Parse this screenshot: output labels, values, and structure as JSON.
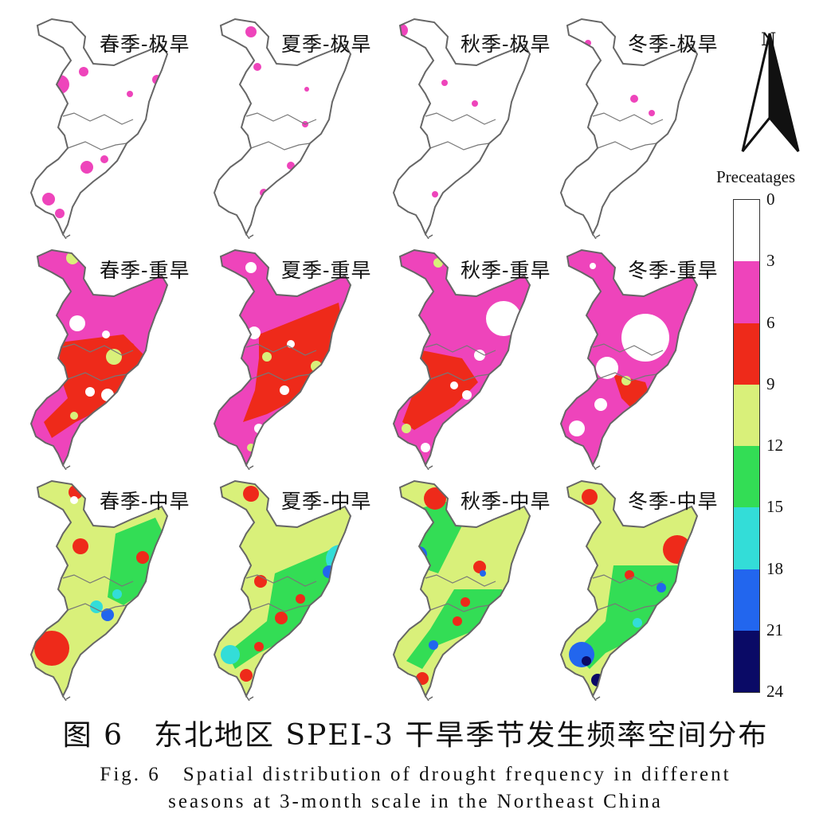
{
  "panels": [
    {
      "title": "春季-极旱",
      "type": "extreme",
      "season": "spring"
    },
    {
      "title": "夏季-极旱",
      "type": "extreme",
      "season": "summer"
    },
    {
      "title": "秋季-极旱",
      "type": "extreme",
      "season": "autumn"
    },
    {
      "title": "冬季-极旱",
      "type": "extreme",
      "season": "winter"
    },
    {
      "title": "春季-重旱",
      "type": "severe",
      "season": "spring"
    },
    {
      "title": "夏季-重旱",
      "type": "severe",
      "season": "summer"
    },
    {
      "title": "秋季-重旱",
      "type": "severe",
      "season": "autumn"
    },
    {
      "title": "冬季-重旱",
      "type": "severe",
      "season": "winter"
    },
    {
      "title": "春季-中旱",
      "type": "moderate",
      "season": "spring"
    },
    {
      "title": "夏季-中旱",
      "type": "moderate",
      "season": "summer"
    },
    {
      "title": "秋季-中旱",
      "type": "moderate",
      "season": "autumn"
    },
    {
      "title": "冬季-中旱",
      "type": "moderate",
      "season": "winter"
    }
  ],
  "north_label": "N",
  "legend": {
    "title": "Preceatages",
    "ticks": [
      "0",
      "3",
      "6",
      "9",
      "12",
      "15",
      "18",
      "21",
      "24"
    ],
    "colors": [
      "#ffffff",
      "#ee44bb",
      "#ee2a1a",
      "#d9f07a",
      "#33dd55",
      "#33ddd8",
      "#2266ee",
      "#0a0a66"
    ]
  },
  "caption": {
    "cn": "图 6　东北地区 SPEI-3 干旱季节发生频率空间分布",
    "en_line1": "Fig. 6　Spatial distribution of drought frequency in different",
    "en_line2": "seasons at 3-month scale in the Northeast China"
  }
}
